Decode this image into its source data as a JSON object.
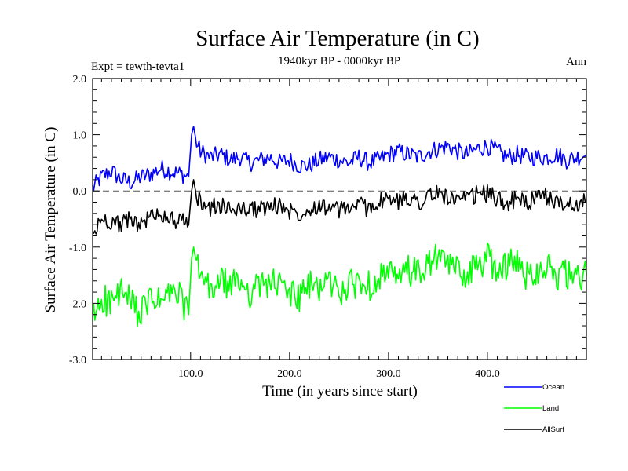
{
  "header": {
    "title": "Surface Air Temperature (in C)",
    "period": "1940kyr BP - 0000kyr BP",
    "experiment": "Expt = tewth-tevta1",
    "season": "Ann"
  },
  "chart_data": {
    "type": "line",
    "title": "Surface Air Temperature (in C)",
    "subtitle": "1940kyr BP - 0000kyr BP",
    "xlabel": "Time (in years since start)",
    "ylabel": "Surface Air Temperature (in C)",
    "xlim": [
      1,
      500
    ],
    "ylim": [
      -3.0,
      2.0
    ],
    "x_ticks": [
      100,
      200,
      300,
      400
    ],
    "x_tick_labels": [
      "100.0",
      "200.0",
      "300.0",
      "400.0"
    ],
    "y_ticks": [
      2.0,
      1.0,
      0.0,
      -1.0,
      -2.0,
      -3.0
    ],
    "y_tick_labels": [
      "2.0",
      "1.0",
      "0.0",
      "-1.0",
      "-2.0",
      "-3.0"
    ],
    "reference_line": 0.0,
    "legend_position": "bottom-right",
    "series": [
      {
        "name": "Ocean",
        "color": "#0000ff",
        "x": [
          1,
          10,
          20,
          30,
          40,
          50,
          60,
          70,
          80,
          90,
          98,
          101,
          103,
          106,
          110,
          120,
          130,
          140,
          150,
          160,
          170,
          180,
          190,
          200,
          210,
          220,
          230,
          240,
          250,
          260,
          270,
          280,
          290,
          300,
          310,
          320,
          330,
          340,
          350,
          360,
          370,
          380,
          390,
          400,
          410,
          420,
          430,
          440,
          450,
          460,
          470,
          480,
          490,
          500
        ],
        "values": [
          0.05,
          0.25,
          0.35,
          0.2,
          0.15,
          0.25,
          0.3,
          0.4,
          0.35,
          0.3,
          0.25,
          1.0,
          1.15,
          0.85,
          0.7,
          0.6,
          0.65,
          0.55,
          0.6,
          0.5,
          0.55,
          0.6,
          0.5,
          0.55,
          0.45,
          0.45,
          0.55,
          0.6,
          0.55,
          0.5,
          0.6,
          0.5,
          0.55,
          0.65,
          0.7,
          0.65,
          0.6,
          0.7,
          0.75,
          0.8,
          0.7,
          0.65,
          0.75,
          0.8,
          0.7,
          0.6,
          0.65,
          0.6,
          0.6,
          0.6,
          0.65,
          0.55,
          0.6,
          0.65
        ]
      },
      {
        "name": "Land",
        "color": "#00ff00",
        "x": [
          1,
          10,
          20,
          30,
          40,
          50,
          60,
          70,
          80,
          90,
          98,
          101,
          103,
          106,
          110,
          120,
          130,
          140,
          150,
          160,
          170,
          180,
          190,
          200,
          210,
          220,
          230,
          240,
          250,
          260,
          270,
          280,
          290,
          300,
          310,
          320,
          330,
          340,
          350,
          360,
          370,
          380,
          390,
          400,
          410,
          420,
          430,
          440,
          450,
          460,
          470,
          480,
          490,
          500
        ],
        "values": [
          -2.3,
          -1.9,
          -2.0,
          -1.8,
          -2.0,
          -2.2,
          -1.9,
          -2.0,
          -1.8,
          -1.9,
          -2.2,
          -1.2,
          -1.0,
          -1.3,
          -1.5,
          -1.8,
          -1.6,
          -1.7,
          -1.6,
          -1.8,
          -1.7,
          -1.6,
          -1.7,
          -1.8,
          -1.9,
          -1.7,
          -1.7,
          -1.6,
          -1.8,
          -1.7,
          -1.6,
          -1.7,
          -1.5,
          -1.5,
          -1.6,
          -1.4,
          -1.5,
          -1.3,
          -1.2,
          -1.3,
          -1.4,
          -1.5,
          -1.3,
          -1.2,
          -1.4,
          -1.3,
          -1.3,
          -1.5,
          -1.4,
          -1.3,
          -1.5,
          -1.5,
          -1.6,
          -1.5
        ]
      },
      {
        "name": "AllSurf",
        "color": "#000000",
        "x": [
          1,
          10,
          20,
          30,
          40,
          50,
          60,
          70,
          80,
          90,
          98,
          101,
          103,
          106,
          110,
          120,
          130,
          140,
          150,
          160,
          170,
          180,
          190,
          200,
          210,
          220,
          230,
          240,
          250,
          260,
          270,
          280,
          290,
          300,
          310,
          320,
          330,
          340,
          350,
          360,
          370,
          380,
          390,
          400,
          410,
          420,
          430,
          440,
          450,
          460,
          470,
          480,
          490,
          500
        ],
        "values": [
          -0.8,
          -0.5,
          -0.55,
          -0.6,
          -0.5,
          -0.6,
          -0.45,
          -0.4,
          -0.5,
          -0.55,
          -0.6,
          0.0,
          0.2,
          -0.1,
          -0.2,
          -0.3,
          -0.25,
          -0.35,
          -0.3,
          -0.35,
          -0.3,
          -0.3,
          -0.25,
          -0.35,
          -0.4,
          -0.3,
          -0.25,
          -0.3,
          -0.35,
          -0.3,
          -0.25,
          -0.3,
          -0.2,
          -0.15,
          -0.2,
          -0.1,
          -0.2,
          -0.1,
          -0.05,
          -0.1,
          -0.2,
          -0.15,
          -0.05,
          -0.05,
          -0.15,
          -0.2,
          -0.15,
          -0.2,
          -0.15,
          -0.1,
          -0.2,
          -0.25,
          -0.2,
          -0.2
        ]
      }
    ]
  }
}
